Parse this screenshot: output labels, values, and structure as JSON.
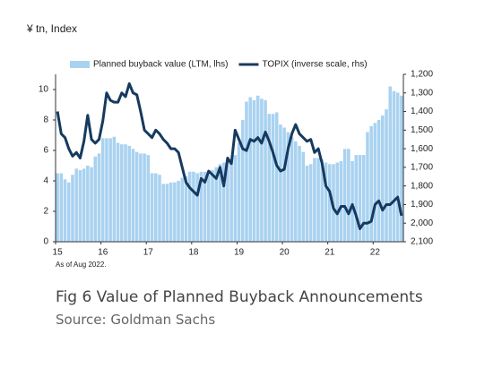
{
  "chart_data": {
    "type": "combo",
    "axis_label": "¥ tn, Index",
    "note": "As of Aug 2022.",
    "caption": "Fig 6 Value of Planned Buyback Announcements",
    "source": "Source: Goldman Sachs",
    "legend": "top",
    "categories": [
      "15",
      null,
      null,
      null,
      null,
      null,
      null,
      null,
      null,
      null,
      null,
      null,
      "16",
      null,
      null,
      null,
      null,
      null,
      null,
      null,
      null,
      null,
      null,
      null,
      "17",
      null,
      null,
      null,
      null,
      null,
      null,
      null,
      null,
      null,
      null,
      null,
      "18",
      null,
      null,
      null,
      null,
      null,
      null,
      null,
      null,
      null,
      null,
      null,
      "19",
      null,
      null,
      null,
      null,
      null,
      null,
      null,
      null,
      null,
      null,
      null,
      "20",
      null,
      null,
      null,
      null,
      null,
      null,
      null,
      null,
      null,
      null,
      null,
      "21",
      null,
      null,
      null,
      null,
      null,
      null,
      null,
      null,
      null,
      null,
      null,
      "22",
      null,
      null,
      null,
      null,
      null,
      null,
      null
    ],
    "series": [
      {
        "name": "Planned buyback value (LTM, lhs)",
        "type": "bar",
        "color": "#a9d2f0",
        "values": [
          4.5,
          4.5,
          4.1,
          3.9,
          4.4,
          4.8,
          4.7,
          4.8,
          5.0,
          4.9,
          5.6,
          5.8,
          6.8,
          6.8,
          6.8,
          6.9,
          6.5,
          6.4,
          6.4,
          6.3,
          6.1,
          5.9,
          5.8,
          5.8,
          5.7,
          4.5,
          4.5,
          4.4,
          3.8,
          3.8,
          3.9,
          3.9,
          4.0,
          4.2,
          4.3,
          4.6,
          4.6,
          4.5,
          4.6,
          4.6,
          4.4,
          4.7,
          4.9,
          5.1,
          5.2,
          5.3,
          5.4,
          5.7,
          6.5,
          8.0,
          9.2,
          9.5,
          9.3,
          9.6,
          9.4,
          9.3,
          8.4,
          8.4,
          8.5,
          7.7,
          7.5,
          7.2,
          6.9,
          6.6,
          6.3,
          5.9,
          5.0,
          5.1,
          5.5,
          5.5,
          5.4,
          5.2,
          5.1,
          5.1,
          5.2,
          5.3,
          6.1,
          6.1,
          5.3,
          5.7,
          5.7,
          5.7,
          7.2,
          7.6,
          7.8,
          8.0,
          8.3,
          8.7,
          10.2,
          9.9,
          9.8,
          9.6
        ]
      },
      {
        "name": "TOPIX (inverse scale, rhs)",
        "type": "line",
        "axis": "y2",
        "color": "#163a5f",
        "values": [
          1400,
          1520,
          1540,
          1600,
          1640,
          1620,
          1650,
          1560,
          1420,
          1550,
          1570,
          1550,
          1450,
          1300,
          1340,
          1350,
          1350,
          1300,
          1320,
          1250,
          1300,
          1310,
          1400,
          1500,
          1520,
          1540,
          1500,
          1520,
          1550,
          1570,
          1600,
          1600,
          1620,
          1700,
          1780,
          1810,
          1830,
          1850,
          1760,
          1780,
          1720,
          1740,
          1760,
          1700,
          1800,
          1650,
          1680,
          1500,
          1550,
          1600,
          1610,
          1550,
          1560,
          1540,
          1570,
          1510,
          1560,
          1620,
          1690,
          1720,
          1710,
          1600,
          1520,
          1470,
          1520,
          1540,
          1560,
          1550,
          1620,
          1600,
          1680,
          1800,
          1830,
          1920,
          1950,
          1910,
          1910,
          1950,
          1900,
          1960,
          2030,
          2000,
          2000,
          1990,
          1900,
          1880,
          1930,
          1900,
          1900,
          1880,
          1860,
          1960
        ]
      }
    ],
    "ylim": [
      0,
      11
    ],
    "yticks": [
      0,
      2,
      4,
      6,
      8,
      10
    ],
    "y2lim": [
      2100,
      1200
    ],
    "y2ticks": [
      {
        "value": 1200,
        "label": "1,200"
      },
      {
        "value": 1300,
        "label": "1,300"
      },
      {
        "value": 1400,
        "label": "1,400"
      },
      {
        "value": 1500,
        "label": "1,500"
      },
      {
        "value": 1600,
        "label": "1,600"
      },
      {
        "value": 1700,
        "label": "1,700"
      },
      {
        "value": 1800,
        "label": "1,800"
      },
      {
        "value": 1900,
        "label": "1,900"
      },
      {
        "value": 2000,
        "label": "2,000"
      },
      {
        "value": 2100,
        "label": "2,100"
      }
    ],
    "grid": false
  }
}
